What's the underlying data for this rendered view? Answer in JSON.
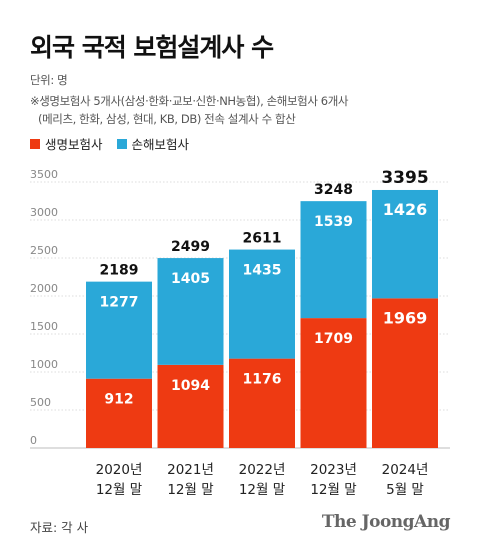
{
  "title": "외국 국적 보험설계사 수",
  "unit": "단위: 명",
  "note_line1": "※생명보험사 5개사(삼성·한화·교보·신한·NH농협), 손해보험사 6개사",
  "note_line2": "(메리츠, 한화, 삼성, 현대, KB, DB) 전속 설계사 수 합산",
  "source": "자료: 각 사",
  "brand": "The JoongAng",
  "colors": {
    "life": "#ee3a12",
    "nonlife": "#2aa8d8"
  },
  "chart_data": {
    "type": "bar",
    "stacked": true,
    "categories": [
      [
        "2020년",
        "12월 말"
      ],
      [
        "2021년",
        "12월 말"
      ],
      [
        "2022년",
        "12월 말"
      ],
      [
        "2023년",
        "12월 말"
      ],
      [
        "2024년",
        "5월 말"
      ]
    ],
    "series": [
      {
        "name": "생명보험사",
        "values": [
          912,
          1094,
          1176,
          1709,
          1969
        ]
      },
      {
        "name": "손해보험사",
        "values": [
          1277,
          1405,
          1435,
          1539,
          1426
        ]
      }
    ],
    "totals": [
      2189,
      2499,
      2611,
      3248,
      3395
    ],
    "yticks": [
      0,
      500,
      1000,
      1500,
      2000,
      2500,
      3000,
      3500
    ],
    "ylim": [
      0,
      3500
    ],
    "grid": true,
    "legend": "top-left"
  }
}
